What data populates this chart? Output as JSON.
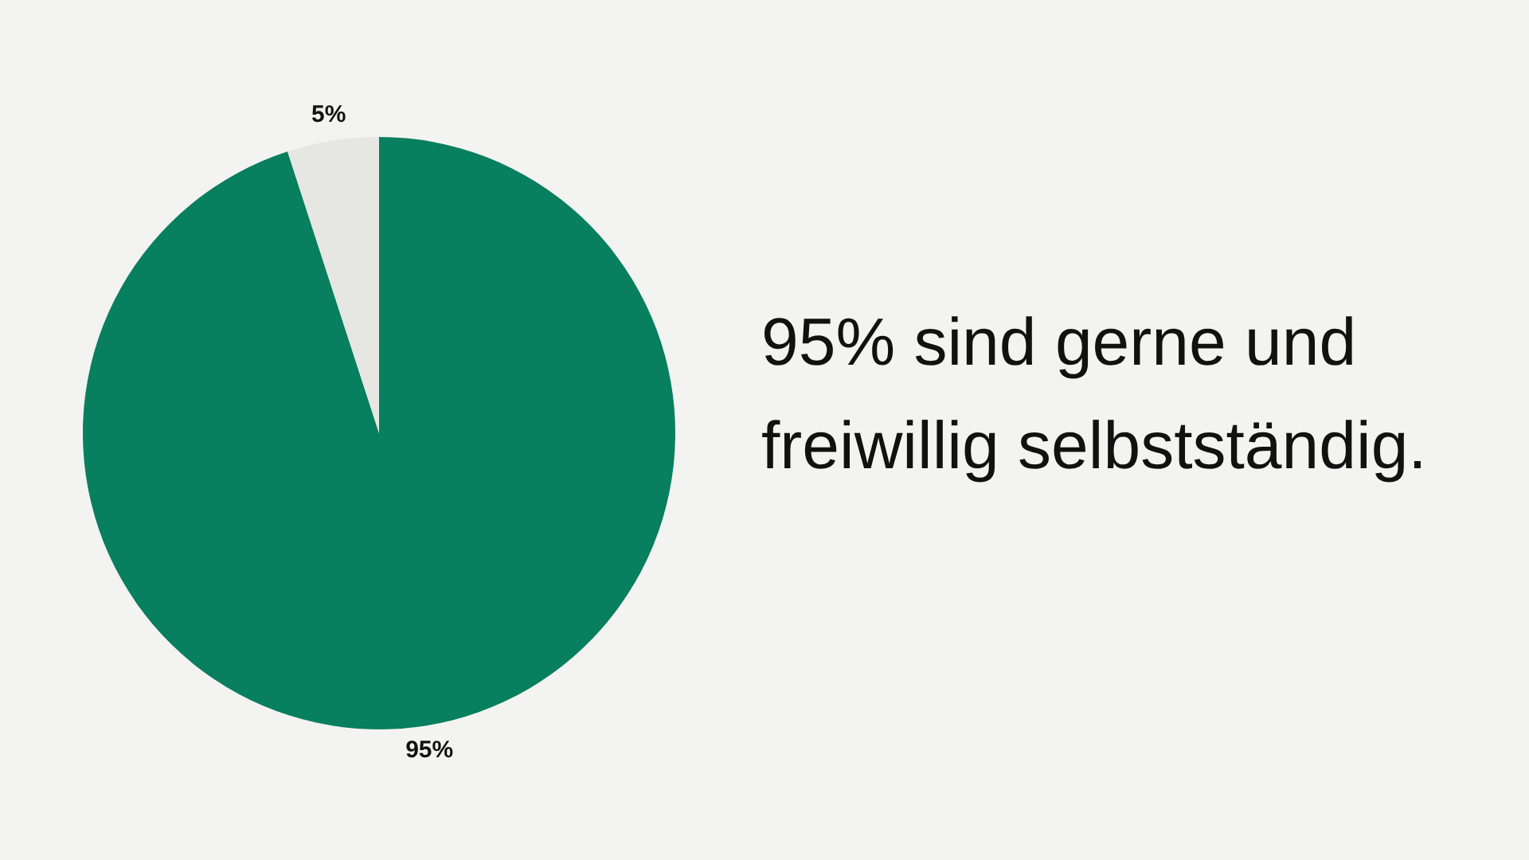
{
  "chart_data": {
    "type": "pie",
    "title": "95% sind gerne und freiwillig selbstständig.",
    "categories": [
      null,
      null
    ],
    "values": [
      95,
      5
    ],
    "colors": [
      "#087f5f",
      "#e6e6e2"
    ],
    "value_labels": [
      "95%",
      "5%"
    ],
    "legend": false
  }
}
